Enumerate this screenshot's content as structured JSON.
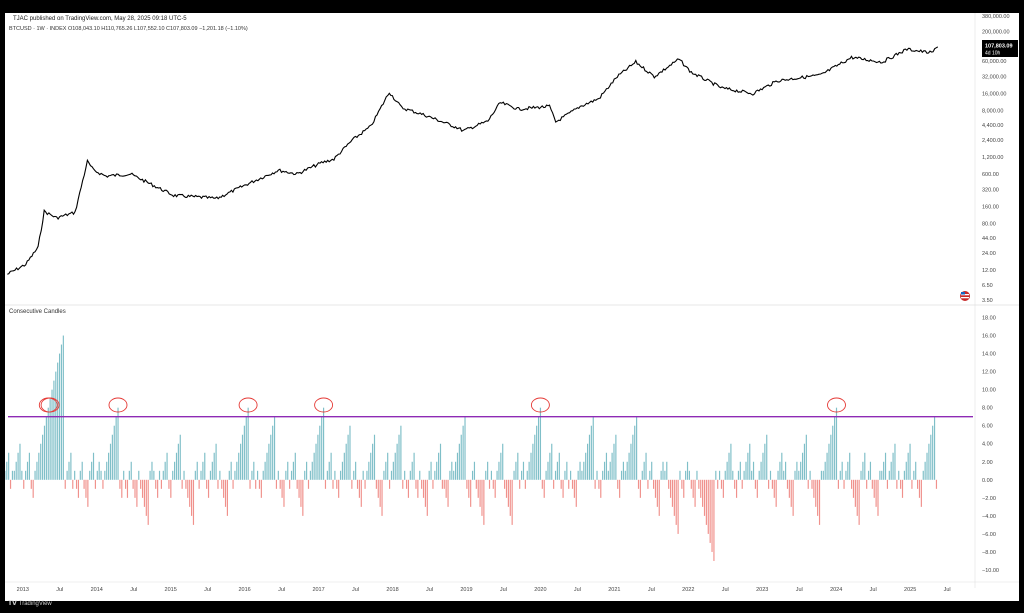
{
  "header": {
    "publisher": "TJAC published on TradingView.com, May 28, 2025 09:18 UTC-5"
  },
  "price_legend": "BTCUSD · 1W · INDEX  O108,043.10  H110,765.26  L107,552.10  C107,803.09  −1,201.18 (−1.10%)",
  "price_badge": {
    "value": "107,803.09",
    "countdown": "4d 10h",
    "color": "#000000"
  },
  "indicator_title": "Consecutive Candles",
  "footer": {
    "brand": "TradingView"
  },
  "colors": {
    "price_line": "#000000",
    "positive_bar": "#7FBFC8",
    "negative_bar": "#F0918C",
    "threshold_line": "#8E2AB5",
    "annotation_circle": "#E53935"
  },
  "icons": {
    "flag": "us-flag-icon"
  },
  "chart_data": [
    {
      "type": "line",
      "title": "",
      "scale": "log",
      "x_ticks": [
        "2013",
        "Jul",
        "2014",
        "Jul",
        "2015",
        "Jul",
        "2016",
        "Jul",
        "2017",
        "Jul",
        "2018",
        "Jul",
        "2019",
        "Jul",
        "2020",
        "Jul",
        "2021",
        "Jul",
        "2022",
        "Jul",
        "2023",
        "Jul",
        "2024",
        "Jul",
        "2025",
        "Jul"
      ],
      "y_ticks": [
        "3.50",
        "6.50",
        "12.00",
        "24.00",
        "44.00",
        "80.00",
        "160.00",
        "320.00",
        "600.00",
        "1,200.00",
        "2,400.00",
        "4,400.00",
        "8,000.00",
        "16,000.00",
        "32,000.00",
        "60,000.00",
        "120,000.00",
        "200,000.00",
        "380,000.00"
      ],
      "ylim": [
        3.5,
        380000
      ],
      "series": [
        {
          "x": [
            "2012-10",
            "2013-01",
            "2013-03",
            "2013-04",
            "2013-06",
            "2013-09",
            "2013-11",
            "2013-12",
            "2014-02",
            "2014-06",
            "2015-01",
            "2015-06",
            "2015-08",
            "2016-01",
            "2016-06",
            "2016-09",
            "2017-01",
            "2017-03",
            "2017-06",
            "2017-09",
            "2017-12",
            "2018-02",
            "2018-06",
            "2018-11",
            "2018-12",
            "2019-04",
            "2019-06",
            "2019-09",
            "2020-02",
            "2020-03",
            "2020-07",
            "2020-10",
            "2021-01",
            "2021-04",
            "2021-07",
            "2021-11",
            "2022-01",
            "2022-06",
            "2022-11",
            "2023-03",
            "2023-06",
            "2023-10",
            "2024-03",
            "2024-08",
            "2024-12",
            "2025-04",
            "2025-05"
          ],
          "y": [
            10,
            15,
            30,
            130,
            100,
            125,
            1000,
            700,
            550,
            600,
            250,
            230,
            220,
            400,
            700,
            600,
            950,
            1100,
            2400,
            4200,
            17000,
            9000,
            6500,
            4000,
            3500,
            5200,
            11000,
            8500,
            9500,
            5000,
            9500,
            13000,
            32000,
            58000,
            32000,
            65000,
            38000,
            20000,
            16000,
            27000,
            30000,
            34000,
            70000,
            58000,
            98000,
            84000,
            107803
          ]
        }
      ]
    },
    {
      "type": "bar",
      "title": "Consecutive Candles",
      "x_range": [
        "2012-10",
        "2025-05"
      ],
      "y_ticks": [
        "18.00",
        "16.00",
        "14.00",
        "12.00",
        "10.00",
        "8.00",
        "6.00",
        "4.00",
        "2.00",
        "0.00",
        "−2.00",
        "−4.00",
        "−6.00",
        "−8.00",
        "−10.00"
      ],
      "ylim": [
        -11,
        18.5
      ],
      "threshold": 7,
      "values": [
        1,
        2,
        3,
        -1,
        1,
        1,
        2,
        3,
        4,
        1,
        -1,
        1,
        2,
        3,
        -1,
        -2,
        1,
        2,
        3,
        4,
        5,
        6,
        7,
        8,
        9,
        10,
        11,
        12,
        13,
        14,
        15,
        16,
        -1,
        1,
        2,
        3,
        -1,
        1,
        -1,
        -2,
        1,
        2,
        -1,
        -2,
        -3,
        1,
        2,
        3,
        -1,
        1,
        2,
        1,
        -1,
        1,
        2,
        3,
        4,
        5,
        6,
        7,
        8,
        -1,
        -2,
        1,
        -1,
        -2,
        1,
        2,
        -1,
        -2,
        -3,
        1,
        -1,
        -2,
        -3,
        -4,
        -5,
        1,
        2,
        1,
        -1,
        -2,
        1,
        -1,
        1,
        2,
        3,
        -1,
        -2,
        1,
        2,
        3,
        4,
        5,
        -1,
        1,
        -1,
        -2,
        -3,
        -4,
        -5,
        1,
        2,
        -1,
        1,
        2,
        3,
        -1,
        -2,
        1,
        2,
        3,
        4,
        -1,
        1,
        -1,
        -2,
        -3,
        -4,
        1,
        2,
        -1,
        1,
        2,
        3,
        4,
        5,
        6,
        7,
        8,
        -1,
        1,
        2,
        -1,
        1,
        -1,
        -2,
        1,
        2,
        3,
        4,
        5,
        6,
        7,
        -1,
        1,
        -1,
        -2,
        -3,
        1,
        2,
        -1,
        1,
        2,
        3,
        -1,
        -2,
        -3,
        -4,
        1,
        2,
        -1,
        1,
        2,
        3,
        4,
        5,
        6,
        7,
        8,
        -1,
        1,
        2,
        3,
        -1,
        1,
        -1,
        -2,
        1,
        2,
        3,
        4,
        5,
        6,
        -1,
        1,
        2,
        -1,
        -2,
        -3,
        1,
        -1,
        1,
        2,
        3,
        4,
        5,
        -1,
        -2,
        -3,
        -4,
        1,
        2,
        3,
        -1,
        1,
        2,
        3,
        4,
        5,
        6,
        -1,
        1,
        -1,
        -2,
        1,
        2,
        3,
        -1,
        -2,
        1,
        -1,
        -2,
        -3,
        -4,
        1,
        2,
        -1,
        1,
        2,
        3,
        4,
        -1,
        -1,
        -2,
        -3,
        1,
        2,
        1,
        2,
        3,
        4,
        5,
        6,
        7,
        -1,
        -2,
        -3,
        1,
        2,
        -1,
        -2,
        -3,
        -4,
        -5,
        1,
        2,
        -1,
        1,
        -1,
        -2,
        1,
        2,
        3,
        4,
        -1,
        -2,
        -3,
        -4,
        -5,
        1,
        2,
        3,
        -1,
        1,
        2,
        -1,
        1,
        2,
        3,
        4,
        5,
        6,
        7,
        8,
        -1,
        -2,
        1,
        2,
        3,
        4,
        -1,
        1,
        2,
        3,
        -1,
        -2,
        1,
        2,
        -1,
        1,
        -1,
        -2,
        -3,
        1,
        2,
        1,
        2,
        3,
        4,
        5,
        6,
        7,
        -1,
        1,
        -1,
        -2,
        1,
        2,
        3,
        1,
        2,
        3,
        4,
        5,
        -1,
        -2,
        1,
        2,
        1,
        2,
        3,
        4,
        5,
        6,
        7,
        -1,
        -2,
        1,
        2,
        3,
        -1,
        1,
        2,
        -1,
        -2,
        -3,
        -4,
        1,
        2,
        1,
        2,
        -1,
        -2,
        -3,
        -4,
        -5,
        -6,
        1,
        -1,
        -2,
        1,
        2,
        1,
        -1,
        -2,
        -3,
        1,
        -1,
        -2,
        -3,
        -4,
        -5,
        -6,
        -7,
        -8,
        -9,
        1,
        -1,
        1,
        -1,
        -2,
        1,
        2,
        3,
        4,
        1,
        -1,
        -2,
        1,
        2,
        -1,
        1,
        2,
        3,
        4,
        1,
        2,
        -1,
        -2,
        1,
        2,
        3,
        4,
        5,
        -1,
        1,
        -1,
        -2,
        -3,
        1,
        2,
        3,
        1,
        2,
        -1,
        -2,
        -3,
        -4,
        1,
        2,
        1,
        2,
        3,
        4,
        5,
        -1,
        1,
        -1,
        -2,
        -3,
        -4,
        -5,
        1,
        1,
        2,
        3,
        4,
        5,
        6,
        7,
        8,
        -1,
        1,
        2,
        -1,
        1,
        2,
        3,
        -1,
        -2,
        -3,
        -4,
        -5,
        1,
        2,
        3,
        -1,
        1,
        2,
        -1,
        -2,
        -3,
        -4,
        1,
        1,
        2,
        3,
        -1,
        1,
        2,
        3,
        4,
        -1,
        1,
        -1,
        -2,
        1,
        2,
        3,
        4,
        -1,
        1,
        2,
        -1,
        -2,
        -3,
        1,
        2,
        3,
        4,
        5,
        6,
        7,
        -1
      ]
    }
  ]
}
